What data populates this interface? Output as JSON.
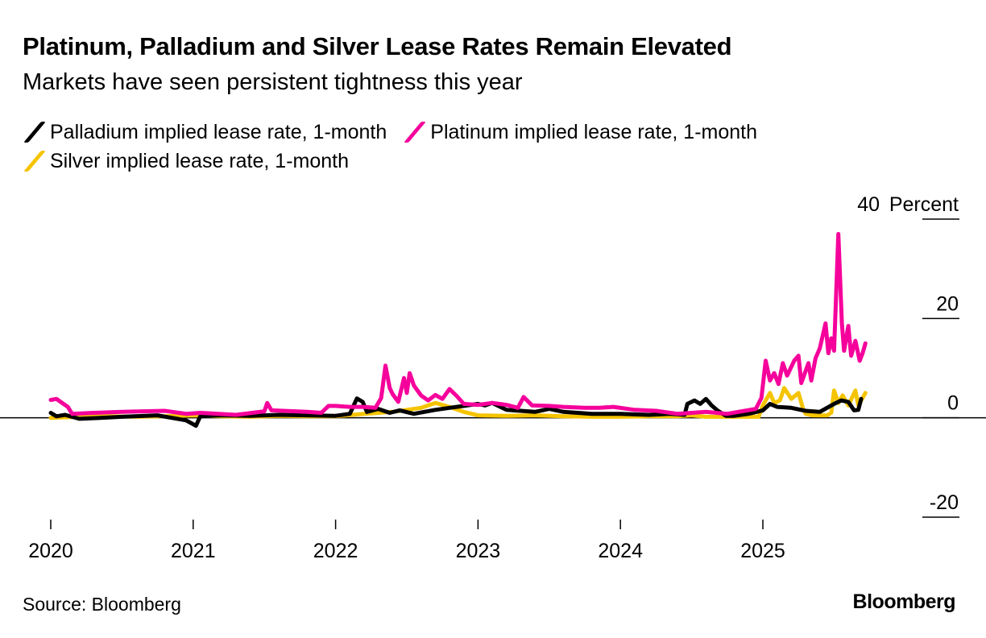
{
  "header": {
    "title": "Platinum, Palladium and Silver Lease Rates Remain Elevated",
    "subtitle": "Markets have seen persistent tightness this year"
  },
  "footer": {
    "source": "Source: Bloomberg",
    "brand": "Bloomberg"
  },
  "chart_data": {
    "type": "line",
    "title": "Platinum, Palladium and Silver Lease Rates Remain Elevated",
    "subtitle": "Markets have seen persistent tightness this year",
    "ylabel": "Percent",
    "ylim": [
      -20,
      40
    ],
    "yticks": [
      40,
      20,
      0,
      -20
    ],
    "xlim": [
      2020.0,
      2025.72
    ],
    "xticks": [
      {
        "value": 2020,
        "label": "2020"
      },
      {
        "value": 2021,
        "label": "2021"
      },
      {
        "value": 2022,
        "label": "2022"
      },
      {
        "value": 2023,
        "label": "2023"
      },
      {
        "value": 2024,
        "label": "2024"
      },
      {
        "value": 2025,
        "label": "2025"
      }
    ],
    "legend_position": "top-left",
    "series": [
      {
        "name": "Palladium implied lease rate, 1-month",
        "color": "#000000",
        "points": [
          [
            2020.0,
            1.0
          ],
          [
            2020.04,
            0.3
          ],
          [
            2020.1,
            0.6
          ],
          [
            2020.2,
            -0.2
          ],
          [
            2020.35,
            0.0
          ],
          [
            2020.5,
            0.2
          ],
          [
            2020.75,
            0.5
          ],
          [
            2020.95,
            -0.5
          ],
          [
            2021.02,
            -1.6
          ],
          [
            2021.05,
            0.3
          ],
          [
            2021.2,
            0.5
          ],
          [
            2021.4,
            0.4
          ],
          [
            2021.6,
            0.6
          ],
          [
            2021.8,
            0.5
          ],
          [
            2022.0,
            0.4
          ],
          [
            2022.1,
            0.8
          ],
          [
            2022.15,
            3.9
          ],
          [
            2022.19,
            3.2
          ],
          [
            2022.22,
            1.2
          ],
          [
            2022.3,
            1.8
          ],
          [
            2022.38,
            1.0
          ],
          [
            2022.45,
            1.5
          ],
          [
            2022.55,
            0.8
          ],
          [
            2022.7,
            1.6
          ],
          [
            2022.8,
            2.0
          ],
          [
            2022.9,
            2.4
          ],
          [
            2023.0,
            2.8
          ],
          [
            2023.05,
            2.5
          ],
          [
            2023.1,
            3.0
          ],
          [
            2023.2,
            1.6
          ],
          [
            2023.3,
            1.4
          ],
          [
            2023.4,
            1.2
          ],
          [
            2023.5,
            1.8
          ],
          [
            2023.6,
            1.2
          ],
          [
            2023.8,
            0.8
          ],
          [
            2024.0,
            0.8
          ],
          [
            2024.2,
            0.6
          ],
          [
            2024.35,
            0.8
          ],
          [
            2024.45,
            0.6
          ],
          [
            2024.47,
            2.8
          ],
          [
            2024.52,
            3.5
          ],
          [
            2024.56,
            2.8
          ],
          [
            2024.6,
            3.8
          ],
          [
            2024.64,
            2.5
          ],
          [
            2024.68,
            1.5
          ],
          [
            2024.74,
            0.4
          ],
          [
            2024.8,
            0.4
          ],
          [
            2024.9,
            0.8
          ],
          [
            2025.0,
            1.5
          ],
          [
            2025.05,
            2.8
          ],
          [
            2025.1,
            2.2
          ],
          [
            2025.2,
            2.0
          ],
          [
            2025.3,
            1.4
          ],
          [
            2025.4,
            1.2
          ],
          [
            2025.45,
            2.0
          ],
          [
            2025.5,
            2.8
          ],
          [
            2025.55,
            3.5
          ],
          [
            2025.6,
            3.2
          ],
          [
            2025.64,
            1.5
          ],
          [
            2025.67,
            1.6
          ],
          [
            2025.69,
            3.8
          ]
        ]
      },
      {
        "name": "Platinum implied lease rate, 1-month",
        "color": "#f5009b",
        "points": [
          [
            2020.0,
            3.6
          ],
          [
            2020.04,
            3.8
          ],
          [
            2020.08,
            3.0
          ],
          [
            2020.12,
            2.2
          ],
          [
            2020.15,
            0.8
          ],
          [
            2020.3,
            1.0
          ],
          [
            2020.5,
            1.2
          ],
          [
            2020.8,
            1.4
          ],
          [
            2020.95,
            0.8
          ],
          [
            2021.05,
            1.0
          ],
          [
            2021.3,
            0.6
          ],
          [
            2021.5,
            1.3
          ],
          [
            2021.52,
            3.0
          ],
          [
            2021.55,
            1.5
          ],
          [
            2021.8,
            1.2
          ],
          [
            2021.9,
            1.0
          ],
          [
            2021.95,
            2.4
          ],
          [
            2022.0,
            2.4
          ],
          [
            2022.1,
            2.2
          ],
          [
            2022.2,
            2.2
          ],
          [
            2022.28,
            2.0
          ],
          [
            2022.32,
            4.0
          ],
          [
            2022.35,
            10.5
          ],
          [
            2022.38,
            6.0
          ],
          [
            2022.4,
            4.8
          ],
          [
            2022.44,
            3.2
          ],
          [
            2022.48,
            8.0
          ],
          [
            2022.5,
            5.0
          ],
          [
            2022.52,
            9.0
          ],
          [
            2022.55,
            6.5
          ],
          [
            2022.6,
            4.5
          ],
          [
            2022.65,
            3.5
          ],
          [
            2022.7,
            4.6
          ],
          [
            2022.75,
            3.8
          ],
          [
            2022.8,
            5.8
          ],
          [
            2022.85,
            4.4
          ],
          [
            2022.9,
            2.8
          ],
          [
            2023.0,
            2.6
          ],
          [
            2023.1,
            3.0
          ],
          [
            2023.2,
            2.6
          ],
          [
            2023.28,
            2.0
          ],
          [
            2023.32,
            4.2
          ],
          [
            2023.38,
            2.5
          ],
          [
            2023.5,
            2.4
          ],
          [
            2023.6,
            2.2
          ],
          [
            2023.75,
            2.0
          ],
          [
            2023.85,
            2.0
          ],
          [
            2023.95,
            2.2
          ],
          [
            2024.1,
            1.6
          ],
          [
            2024.25,
            1.4
          ],
          [
            2024.4,
            0.8
          ],
          [
            2024.5,
            1.0
          ],
          [
            2024.6,
            1.2
          ],
          [
            2024.75,
            0.8
          ],
          [
            2024.95,
            1.8
          ],
          [
            2024.99,
            4.0
          ],
          [
            2025.02,
            11.5
          ],
          [
            2025.05,
            7.5
          ],
          [
            2025.08,
            9.0
          ],
          [
            2025.11,
            6.8
          ],
          [
            2025.14,
            11.0
          ],
          [
            2025.17,
            8.5
          ],
          [
            2025.22,
            11.5
          ],
          [
            2025.25,
            12.5
          ],
          [
            2025.27,
            7.0
          ],
          [
            2025.32,
            11.0
          ],
          [
            2025.34,
            7.5
          ],
          [
            2025.37,
            12.0
          ],
          [
            2025.4,
            14.0
          ],
          [
            2025.44,
            19.0
          ],
          [
            2025.46,
            13.0
          ],
          [
            2025.48,
            16.0
          ],
          [
            2025.5,
            13.5
          ],
          [
            2025.53,
            37.0
          ],
          [
            2025.555,
            19.0
          ],
          [
            2025.57,
            13.5
          ],
          [
            2025.6,
            18.5
          ],
          [
            2025.62,
            12.5
          ],
          [
            2025.65,
            15.5
          ],
          [
            2025.68,
            11.5
          ],
          [
            2025.7,
            13.0
          ],
          [
            2025.72,
            15.0
          ]
        ]
      },
      {
        "name": "Silver implied lease rate, 1-month",
        "color": "#f5c400",
        "points": [
          [
            2020.0,
            0.0
          ],
          [
            2020.2,
            0.2
          ],
          [
            2020.4,
            0.3
          ],
          [
            2020.6,
            0.2
          ],
          [
            2020.8,
            0.3
          ],
          [
            2021.0,
            0.5
          ],
          [
            2021.2,
            0.3
          ],
          [
            2021.4,
            0.2
          ],
          [
            2021.6,
            0.4
          ],
          [
            2021.8,
            0.3
          ],
          [
            2022.0,
            0.3
          ],
          [
            2022.2,
            0.8
          ],
          [
            2022.4,
            1.2
          ],
          [
            2022.6,
            2.0
          ],
          [
            2022.7,
            3.0
          ],
          [
            2022.8,
            2.2
          ],
          [
            2022.9,
            1.2
          ],
          [
            2023.0,
            0.5
          ],
          [
            2023.2,
            0.4
          ],
          [
            2023.4,
            0.5
          ],
          [
            2023.6,
            0.3
          ],
          [
            2023.8,
            0.2
          ],
          [
            2024.0,
            0.2
          ],
          [
            2024.2,
            0.3
          ],
          [
            2024.4,
            0.3
          ],
          [
            2024.5,
            0.5
          ],
          [
            2024.6,
            0.2
          ],
          [
            2024.8,
            0.2
          ],
          [
            2024.97,
            0.2
          ],
          [
            2025.0,
            2.5
          ],
          [
            2025.05,
            5.0
          ],
          [
            2025.08,
            3.0
          ],
          [
            2025.12,
            3.5
          ],
          [
            2025.15,
            6.0
          ],
          [
            2025.2,
            3.8
          ],
          [
            2025.25,
            5.0
          ],
          [
            2025.28,
            2.0
          ],
          [
            2025.3,
            0.8
          ],
          [
            2025.35,
            0.5
          ],
          [
            2025.45,
            0.5
          ],
          [
            2025.48,
            1.0
          ],
          [
            2025.5,
            5.5
          ],
          [
            2025.53,
            3.0
          ],
          [
            2025.56,
            4.5
          ],
          [
            2025.6,
            2.5
          ],
          [
            2025.65,
            5.5
          ],
          [
            2025.67,
            2.5
          ],
          [
            2025.7,
            4.0
          ],
          [
            2025.72,
            5.0
          ]
        ]
      }
    ]
  }
}
